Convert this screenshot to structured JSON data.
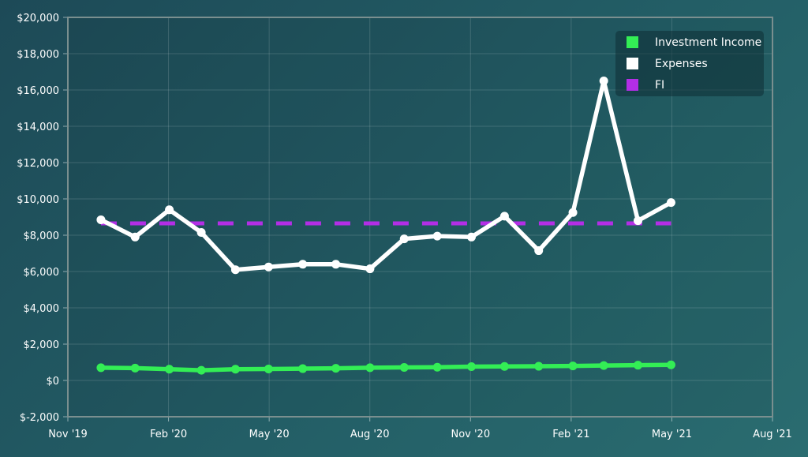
{
  "chart_data": {
    "type": "line",
    "x_ticks": [
      "Nov '19",
      "Feb '20",
      "May '20",
      "Aug '20",
      "Nov '20",
      "Feb '21",
      "May '21",
      "Aug '21"
    ],
    "y_ticks": [
      "$-2,000",
      "$0",
      "$2,000",
      "$4,000",
      "$6,000",
      "$8,000",
      "$10,000",
      "$12,000",
      "$14,000",
      "$16,000",
      "$18,000",
      "$20,000"
    ],
    "xlim": [
      "2019-11-01",
      "2021-08-01"
    ],
    "ylim": [
      -2000,
      20000
    ],
    "grid": true,
    "legend_position": "top-right",
    "dates": [
      "2019-12-01",
      "2020-01-01",
      "2020-02-01",
      "2020-03-01",
      "2020-04-01",
      "2020-05-01",
      "2020-06-01",
      "2020-07-01",
      "2020-08-01",
      "2020-09-01",
      "2020-10-01",
      "2020-11-01",
      "2020-12-01",
      "2021-01-01",
      "2021-02-01",
      "2021-03-01",
      "2021-04-01",
      "2021-05-01"
    ],
    "series": [
      {
        "name": "Investment Income",
        "color": "#33ee55",
        "style": "solid",
        "values": [
          700,
          680,
          620,
          560,
          620,
          630,
          650,
          670,
          700,
          720,
          730,
          760,
          770,
          780,
          800,
          820,
          840,
          860
        ]
      },
      {
        "name": "Expenses",
        "color": "#ffffff",
        "style": "solid",
        "values": [
          8850,
          7900,
          9400,
          8150,
          6100,
          6250,
          6400,
          6400,
          6150,
          7800,
          7950,
          7900,
          9050,
          7150,
          9250,
          16500,
          8800,
          9800
        ]
      },
      {
        "name": "FI",
        "color": "#b32ee6",
        "style": "dashed",
        "values": [
          8650,
          8650,
          8650,
          8650,
          8650,
          8650,
          8650,
          8650,
          8650,
          8650,
          8650,
          8650,
          8650,
          8650,
          8650,
          8650,
          8650,
          8650
        ]
      }
    ]
  }
}
